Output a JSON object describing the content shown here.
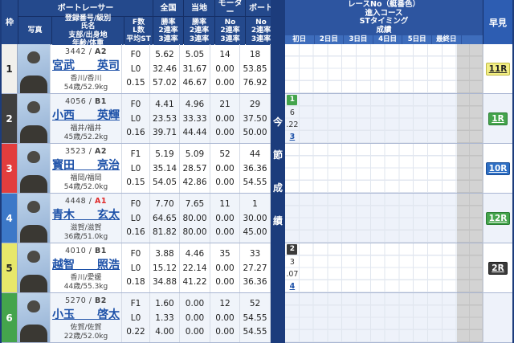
{
  "header": {
    "waku": "枠",
    "photo": "写真",
    "racer_group": "ボートレーサー",
    "racer_sub": "登録番号/級別\n氏名\n支部/出身地\n年齢/体重",
    "f_block": "F数\nL数\n平均ST",
    "zenkoku": "全国",
    "touchi": "当地",
    "motor": "モーター",
    "boat": "ボート",
    "rate3": "勝率\n2連率\n3連率",
    "no3": "No\n2連率\n3連率",
    "race_block": "レースNo（艇番色）\n進入コース\nSTタイミング\n成績",
    "days": [
      "初日",
      "2日目",
      "3日目",
      "4日目",
      "5日目",
      "最終日"
    ],
    "hayami": "早見"
  },
  "side": {
    "chars": [
      "今",
      "節",
      "成",
      "績"
    ]
  },
  "colors": {
    "frame1": "#f1f0ec",
    "frame2": "#3f3f3f",
    "frame3": "#e23d3d",
    "frame4": "#3c78c8",
    "frame5": "#e7e76a",
    "frame6": "#44a44c",
    "link_blue": "#1d51a8",
    "class_red": "#e02a2a",
    "header_navy": "#24498c"
  },
  "racers": [
    {
      "waku": "1",
      "waku_bg": "#f1f0ec",
      "waku_color": "#222",
      "reg_label": "3442 / ",
      "class": "A2",
      "class_color": "#444",
      "name": "宮武　　英司",
      "branch": "香川/香川",
      "age": "54歳/52.9kg",
      "fls": [
        "F0",
        "L0",
        "0.15"
      ],
      "zenkoku": [
        "5.62",
        "32.46",
        "57.02"
      ],
      "touchi": [
        "5.05",
        "31.67",
        "46.67"
      ],
      "motor": [
        "14",
        "0.00",
        "0.00"
      ],
      "boat": [
        "18",
        "53.85",
        "76.92"
      ],
      "series": null,
      "hayami": {
        "label": "11R",
        "bg": "#f3ef85",
        "color": "#222",
        "border": "#c0b945"
      }
    },
    {
      "waku": "2",
      "waku_bg": "#3f3f3f",
      "waku_color": "#fff",
      "reg_label": "4056 / ",
      "class": "B1",
      "class_color": "#444",
      "name": "小西　　英輝",
      "branch": "福井/福井",
      "age": "45歳/52.2kg",
      "fls": [
        "F0",
        "L0",
        "0.16"
      ],
      "zenkoku": [
        "4.41",
        "23.53",
        "39.71"
      ],
      "touchi": [
        "4.96",
        "33.33",
        "44.44"
      ],
      "motor": [
        "21",
        "0.00",
        "0.00"
      ],
      "boat": [
        "29",
        "37.50",
        "50.00"
      ],
      "series": {
        "race": "1",
        "race_bg": "#44a44c",
        "race_color": "#fff",
        "course": "6",
        "st": ".22",
        "result": "3"
      },
      "hayami": {
        "label": "1R",
        "bg": "#44a44c",
        "color": "#fff",
        "border": "#2c7d35"
      }
    },
    {
      "waku": "3",
      "waku_bg": "#e23d3d",
      "waku_color": "#fff",
      "reg_label": "3523 / ",
      "class": "A2",
      "class_color": "#444",
      "name": "寳田　　亮治",
      "branch": "福岡/福岡",
      "age": "54歳/52.0kg",
      "fls": [
        "F1",
        "L0",
        "0.15"
      ],
      "zenkoku": [
        "5.19",
        "35.14",
        "54.05"
      ],
      "touchi": [
        "5.09",
        "28.57",
        "42.86"
      ],
      "motor": [
        "52",
        "0.00",
        "0.00"
      ],
      "boat": [
        "44",
        "36.36",
        "54.55"
      ],
      "series": null,
      "hayami": {
        "label": "10R",
        "bg": "#2e6fc4",
        "color": "#fff",
        "border": "#1c4f97"
      }
    },
    {
      "waku": "4",
      "waku_bg": "#3c78c8",
      "waku_color": "#fff",
      "reg_label": "4448 / ",
      "class": "A1",
      "class_color": "#e02a2a",
      "name": "青木　　玄太",
      "branch": "滋賀/滋賀",
      "age": "36歳/51.0kg",
      "fls": [
        "F0",
        "L0",
        "0.16"
      ],
      "zenkoku": [
        "7.70",
        "64.65",
        "81.82"
      ],
      "touchi": [
        "7.65",
        "80.00",
        "80.00"
      ],
      "motor": [
        "11",
        "0.00",
        "0.00"
      ],
      "boat": [
        "1",
        "30.00",
        "45.00"
      ],
      "series": null,
      "hayami": {
        "label": "12R",
        "bg": "#44a44c",
        "color": "#fff",
        "border": "#2c7d35"
      }
    },
    {
      "waku": "5",
      "waku_bg": "#e7e76a",
      "waku_color": "#222",
      "reg_label": "4010 / ",
      "class": "B1",
      "class_color": "#444",
      "name": "越智　　照浩",
      "branch": "香川/愛媛",
      "age": "44歳/55.3kg",
      "fls": [
        "F0",
        "L0",
        "0.18"
      ],
      "zenkoku": [
        "3.88",
        "15.12",
        "34.88"
      ],
      "touchi": [
        "4.46",
        "22.14",
        "41.22"
      ],
      "motor": [
        "35",
        "0.00",
        "0.00"
      ],
      "boat": [
        "33",
        "27.27",
        "36.36"
      ],
      "series": {
        "race": "2",
        "race_bg": "#3a3a3a",
        "race_color": "#fff",
        "course": "3",
        "st": ".07",
        "result": "4"
      },
      "hayami": {
        "label": "2R",
        "bg": "#3a3a3a",
        "color": "#fff",
        "border": "#1f1f1f"
      }
    },
    {
      "waku": "6",
      "waku_bg": "#44a44c",
      "waku_color": "#fff",
      "reg_label": "5270 / ",
      "class": "B2",
      "class_color": "#444",
      "name": "小玉　　啓太",
      "branch": "佐賀/佐賀",
      "age": "22歳/52.0kg",
      "fls": [
        "F1",
        "L0",
        "0.22"
      ],
      "zenkoku": [
        "1.60",
        "1.33",
        "4.00"
      ],
      "touchi": [
        "0.00",
        "0.00",
        "0.00"
      ],
      "motor": [
        "12",
        "0.00",
        "0.00"
      ],
      "boat": [
        "52",
        "54.55",
        "54.55"
      ],
      "series": null,
      "hayami": null
    }
  ]
}
